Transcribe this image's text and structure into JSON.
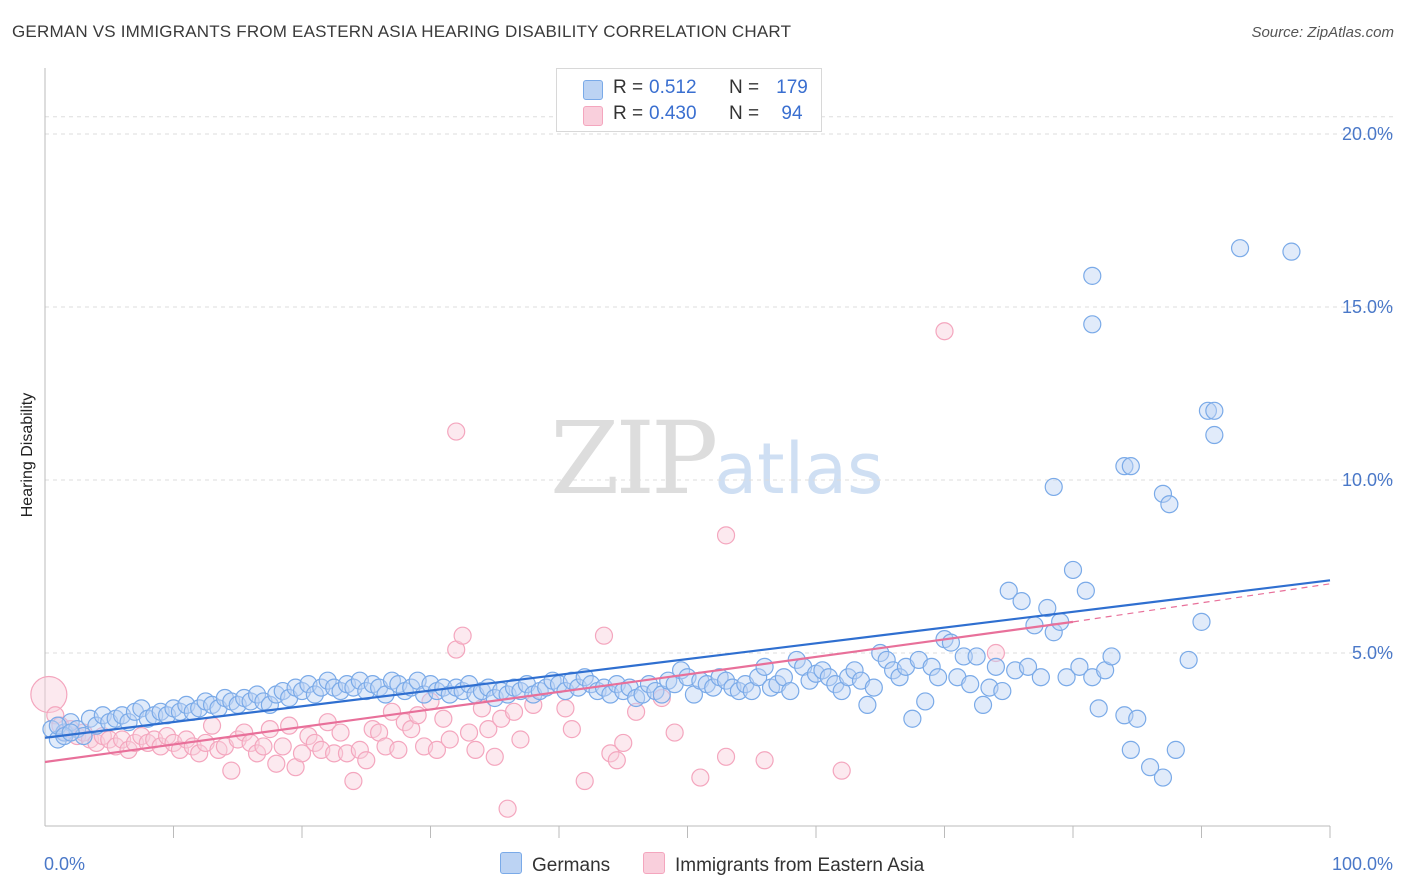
{
  "title": "GERMAN VS IMMIGRANTS FROM EASTERN ASIA HEARING DISABILITY CORRELATION CHART",
  "source": "Source: ZipAtlas.com",
  "watermark": {
    "zip": "ZIP",
    "atlas": "atlas"
  },
  "legend": {
    "r_label": "R =",
    "n_label": "N =",
    "items": [
      {
        "r": "0.512",
        "n": "179"
      },
      {
        "r": "0.430",
        "n": "94"
      }
    ]
  },
  "chart_data": {
    "type": "scatter",
    "title": "GERMAN VS IMMIGRANTS FROM EASTERN ASIA HEARING DISABILITY CORRELATION CHART",
    "xlabel": "",
    "ylabel": "Hearing Disability",
    "xlim": [
      0,
      100
    ],
    "ylim": [
      0,
      20.5
    ],
    "x_tick_labels": [
      "0.0%",
      "100.0%"
    ],
    "y_ticks": [
      5,
      10,
      15,
      20
    ],
    "y_tick_labels": [
      "5.0%",
      "10.0%",
      "15.0%",
      "20.0%"
    ],
    "grid": true,
    "legend_position": "top-center",
    "colors": {
      "germans": "#7aaae8",
      "eastern_asia": "#f4a6be",
      "germans_line": "#2f6fd0",
      "eastern_asia_line": "#e8709a"
    },
    "series": [
      {
        "name": "Germans",
        "trend": {
          "x": [
            0,
            100
          ],
          "y": [
            2.55,
            7.1
          ]
        },
        "points": [
          [
            0.5,
            2.8
          ],
          [
            1.0,
            2.5
          ],
          [
            1.5,
            2.7
          ],
          [
            2.0,
            3.0
          ],
          [
            2.5,
            2.8
          ],
          [
            3.0,
            2.6
          ],
          [
            3.5,
            3.1
          ],
          [
            4.0,
            2.9
          ],
          [
            4.5,
            3.2
          ],
          [
            5.0,
            3.0
          ],
          [
            5.5,
            3.1
          ],
          [
            6.0,
            3.2
          ],
          [
            6.5,
            3.0
          ],
          [
            7.0,
            3.3
          ],
          [
            7.5,
            3.4
          ],
          [
            8.0,
            3.1
          ],
          [
            8.5,
            3.2
          ],
          [
            9.0,
            3.3
          ],
          [
            9.5,
            3.2
          ],
          [
            10.0,
            3.4
          ],
          [
            10.5,
            3.3
          ],
          [
            11.0,
            3.5
          ],
          [
            11.5,
            3.3
          ],
          [
            12.0,
            3.4
          ],
          [
            12.5,
            3.6
          ],
          [
            13.0,
            3.5
          ],
          [
            13.5,
            3.4
          ],
          [
            14.0,
            3.7
          ],
          [
            14.5,
            3.6
          ],
          [
            15.0,
            3.5
          ],
          [
            15.5,
            3.7
          ],
          [
            16.0,
            3.6
          ],
          [
            16.5,
            3.8
          ],
          [
            17.0,
            3.6
          ],
          [
            17.5,
            3.5
          ],
          [
            18.0,
            3.8
          ],
          [
            18.5,
            3.9
          ],
          [
            19.0,
            3.7
          ],
          [
            19.5,
            4.0
          ],
          [
            20.0,
            3.9
          ],
          [
            20.5,
            4.1
          ],
          [
            21.0,
            3.8
          ],
          [
            21.5,
            4.0
          ],
          [
            22.0,
            4.2
          ],
          [
            22.5,
            4.0
          ],
          [
            23.0,
            3.9
          ],
          [
            23.5,
            4.1
          ],
          [
            24.0,
            4.0
          ],
          [
            24.5,
            4.2
          ],
          [
            25.0,
            3.9
          ],
          [
            25.5,
            4.1
          ],
          [
            26.0,
            4.0
          ],
          [
            26.5,
            3.8
          ],
          [
            27.0,
            4.2
          ],
          [
            27.5,
            4.1
          ],
          [
            28.0,
            3.9
          ],
          [
            28.5,
            4.0
          ],
          [
            29.0,
            4.2
          ],
          [
            29.5,
            3.8
          ],
          [
            30.0,
            4.1
          ],
          [
            30.5,
            3.9
          ],
          [
            31.0,
            4.0
          ],
          [
            31.5,
            3.8
          ],
          [
            32.0,
            4.0
          ],
          [
            32.5,
            3.9
          ],
          [
            33.0,
            4.1
          ],
          [
            33.5,
            3.8
          ],
          [
            34.0,
            3.9
          ],
          [
            34.5,
            4.0
          ],
          [
            35.0,
            3.7
          ],
          [
            35.5,
            3.9
          ],
          [
            36.0,
            3.8
          ],
          [
            36.5,
            4.0
          ],
          [
            37.0,
            3.9
          ],
          [
            37.5,
            4.1
          ],
          [
            38.0,
            3.8
          ],
          [
            38.5,
            3.9
          ],
          [
            39.0,
            4.0
          ],
          [
            39.5,
            4.2
          ],
          [
            40.0,
            4.1
          ],
          [
            40.5,
            3.9
          ],
          [
            41.0,
            4.2
          ],
          [
            41.5,
            4.0
          ],
          [
            42.0,
            4.3
          ],
          [
            42.5,
            4.1
          ],
          [
            43.0,
            3.9
          ],
          [
            43.5,
            4.0
          ],
          [
            44.0,
            3.8
          ],
          [
            44.5,
            4.1
          ],
          [
            45.0,
            3.9
          ],
          [
            45.5,
            4.0
          ],
          [
            46.0,
            3.7
          ],
          [
            46.5,
            3.8
          ],
          [
            47.0,
            4.1
          ],
          [
            47.5,
            3.9
          ],
          [
            48.0,
            3.8
          ],
          [
            48.5,
            4.2
          ],
          [
            49.0,
            4.1
          ],
          [
            49.5,
            4.5
          ],
          [
            50.0,
            4.3
          ],
          [
            50.5,
            3.8
          ],
          [
            51.0,
            4.2
          ],
          [
            51.5,
            4.1
          ],
          [
            52.0,
            4.0
          ],
          [
            52.5,
            4.3
          ],
          [
            53.0,
            4.2
          ],
          [
            53.5,
            4.0
          ],
          [
            54.0,
            3.9
          ],
          [
            54.5,
            4.1
          ],
          [
            55.0,
            3.9
          ],
          [
            55.5,
            4.3
          ],
          [
            56.0,
            4.6
          ],
          [
            56.5,
            4.0
          ],
          [
            57.0,
            4.1
          ],
          [
            57.5,
            4.3
          ],
          [
            58.0,
            3.9
          ],
          [
            58.5,
            4.8
          ],
          [
            59.0,
            4.6
          ],
          [
            59.5,
            4.2
          ],
          [
            60.0,
            4.4
          ],
          [
            60.5,
            4.5
          ],
          [
            61.0,
            4.3
          ],
          [
            61.5,
            4.1
          ],
          [
            62.0,
            3.9
          ],
          [
            62.5,
            4.3
          ],
          [
            63.0,
            4.5
          ],
          [
            63.5,
            4.2
          ],
          [
            64.0,
            3.5
          ],
          [
            64.5,
            4.0
          ],
          [
            65.0,
            5.0
          ],
          [
            65.5,
            4.8
          ],
          [
            66.0,
            4.5
          ],
          [
            66.5,
            4.3
          ],
          [
            67.0,
            4.6
          ],
          [
            67.5,
            3.1
          ],
          [
            68.0,
            4.8
          ],
          [
            68.5,
            3.6
          ],
          [
            69.0,
            4.6
          ],
          [
            69.5,
            4.3
          ],
          [
            70.0,
            5.4
          ],
          [
            70.5,
            5.3
          ],
          [
            71.0,
            4.3
          ],
          [
            71.5,
            4.9
          ],
          [
            72.0,
            4.1
          ],
          [
            72.5,
            4.9
          ],
          [
            73.0,
            3.5
          ],
          [
            73.5,
            4.0
          ],
          [
            74.0,
            4.6
          ],
          [
            74.5,
            3.9
          ],
          [
            75.0,
            6.8
          ],
          [
            75.5,
            4.5
          ],
          [
            76.0,
            6.5
          ],
          [
            76.5,
            4.6
          ],
          [
            77.0,
            5.8
          ],
          [
            77.5,
            4.3
          ],
          [
            78.0,
            6.3
          ],
          [
            78.5,
            5.6
          ],
          [
            79.0,
            5.9
          ],
          [
            79.5,
            4.3
          ],
          [
            80.0,
            7.4
          ],
          [
            80.5,
            4.6
          ],
          [
            81.0,
            6.8
          ],
          [
            81.5,
            4.3
          ],
          [
            82.0,
            3.4
          ],
          [
            82.5,
            4.5
          ],
          [
            83.0,
            4.9
          ],
          [
            84.0,
            3.2
          ],
          [
            84.5,
            2.2
          ],
          [
            85.0,
            3.1
          ],
          [
            86.0,
            1.7
          ],
          [
            87.0,
            1.4
          ],
          [
            88.0,
            2.2
          ],
          [
            89.0,
            4.8
          ],
          [
            90.0,
            5.9
          ],
          [
            78.5,
            9.8
          ],
          [
            81.5,
            14.5
          ],
          [
            81.5,
            15.9
          ],
          [
            84.0,
            10.4
          ],
          [
            84.5,
            10.4
          ],
          [
            87.0,
            9.6
          ],
          [
            87.5,
            9.3
          ],
          [
            90.5,
            12.0
          ],
          [
            91.0,
            12.0
          ],
          [
            91.0,
            11.3
          ],
          [
            93.0,
            16.7
          ],
          [
            97.0,
            16.6
          ],
          [
            1.0,
            2.9
          ],
          [
            1.5,
            2.6
          ],
          [
            2.0,
            2.7
          ]
        ]
      },
      {
        "name": "Immigrants from Eastern Asia",
        "trend": {
          "x": [
            0,
            80
          ],
          "y": [
            1.85,
            5.9
          ]
        },
        "dashed_extension": {
          "x": [
            80,
            100
          ],
          "y": [
            5.9,
            7.0
          ]
        },
        "points": [
          [
            0.3,
            3.8
          ],
          [
            0.8,
            3.2
          ],
          [
            1.2,
            2.9
          ],
          [
            1.6,
            2.7
          ],
          [
            2.0,
            2.8
          ],
          [
            2.5,
            2.6
          ],
          [
            3.0,
            2.7
          ],
          [
            3.5,
            2.5
          ],
          [
            4.0,
            2.4
          ],
          [
            4.5,
            2.6
          ],
          [
            5.0,
            2.5
          ],
          [
            5.5,
            2.3
          ],
          [
            6.0,
            2.5
          ],
          [
            6.5,
            2.2
          ],
          [
            7.0,
            2.4
          ],
          [
            7.5,
            2.6
          ],
          [
            8.0,
            2.4
          ],
          [
            8.5,
            2.5
          ],
          [
            9.0,
            2.3
          ],
          [
            9.5,
            2.6
          ],
          [
            10.0,
            2.4
          ],
          [
            10.5,
            2.2
          ],
          [
            11.0,
            2.5
          ],
          [
            11.5,
            2.3
          ],
          [
            12.0,
            2.1
          ],
          [
            12.5,
            2.4
          ],
          [
            13.0,
            2.9
          ],
          [
            13.5,
            2.2
          ],
          [
            14.0,
            2.3
          ],
          [
            14.5,
            1.6
          ],
          [
            15.0,
            2.5
          ],
          [
            15.5,
            2.7
          ],
          [
            16.0,
            2.4
          ],
          [
            16.5,
            2.1
          ],
          [
            17.0,
            2.3
          ],
          [
            17.5,
            2.8
          ],
          [
            18.0,
            1.8
          ],
          [
            18.5,
            2.3
          ],
          [
            19.0,
            2.9
          ],
          [
            19.5,
            1.7
          ],
          [
            20.0,
            2.1
          ],
          [
            20.5,
            2.6
          ],
          [
            21.0,
            2.4
          ],
          [
            21.5,
            2.2
          ],
          [
            22.0,
            3.0
          ],
          [
            22.5,
            2.1
          ],
          [
            23.0,
            2.7
          ],
          [
            23.5,
            2.1
          ],
          [
            24.0,
            1.3
          ],
          [
            24.5,
            2.2
          ],
          [
            25.0,
            1.9
          ],
          [
            25.5,
            2.8
          ],
          [
            26.0,
            2.7
          ],
          [
            26.5,
            2.3
          ],
          [
            27.0,
            3.3
          ],
          [
            27.5,
            2.2
          ],
          [
            28.0,
            3.0
          ],
          [
            28.5,
            2.8
          ],
          [
            29.0,
            3.2
          ],
          [
            29.5,
            2.3
          ],
          [
            30.0,
            3.6
          ],
          [
            30.5,
            2.2
          ],
          [
            31.0,
            3.1
          ],
          [
            31.5,
            2.5
          ],
          [
            32.0,
            5.1
          ],
          [
            32.5,
            5.5
          ],
          [
            33.0,
            2.7
          ],
          [
            33.5,
            2.2
          ],
          [
            34.0,
            3.4
          ],
          [
            34.5,
            2.8
          ],
          [
            35.0,
            2.0
          ],
          [
            35.5,
            3.1
          ],
          [
            36.0,
            0.5
          ],
          [
            36.5,
            3.3
          ],
          [
            37.0,
            2.5
          ],
          [
            38.0,
            3.5
          ],
          [
            40.5,
            3.4
          ],
          [
            41.0,
            2.8
          ],
          [
            42.0,
            1.3
          ],
          [
            43.5,
            5.5
          ],
          [
            44.0,
            2.1
          ],
          [
            44.5,
            1.9
          ],
          [
            45.0,
            2.4
          ],
          [
            46.0,
            3.3
          ],
          [
            48.0,
            3.7
          ],
          [
            49.0,
            2.7
          ],
          [
            51.0,
            1.4
          ],
          [
            53.0,
            2.0
          ],
          [
            62.0,
            1.6
          ],
          [
            70.0,
            14.3
          ],
          [
            74.0,
            5.0
          ],
          [
            32.0,
            11.4
          ],
          [
            53.0,
            8.4
          ],
          [
            56.0,
            1.9
          ]
        ]
      }
    ]
  }
}
